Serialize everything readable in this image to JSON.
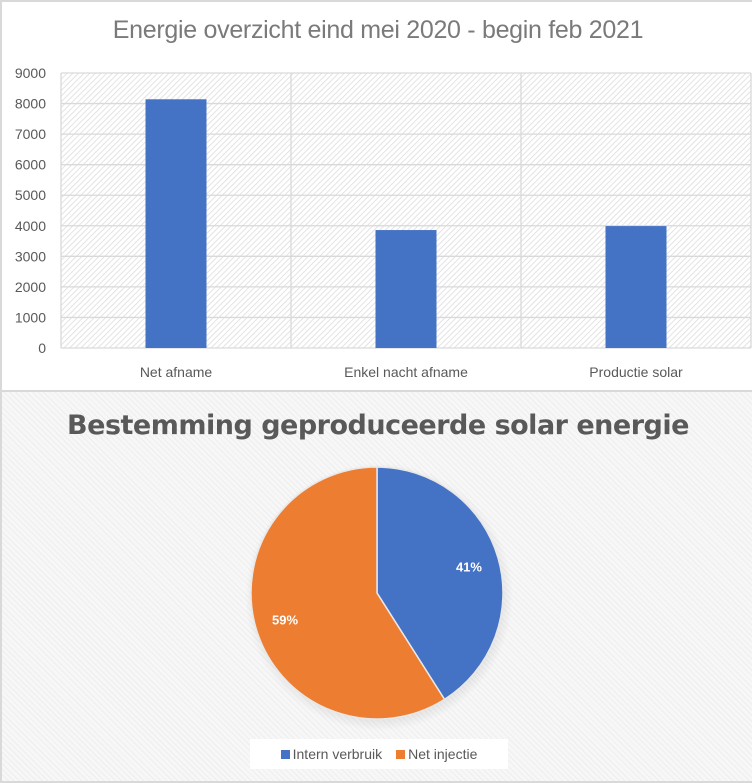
{
  "chart_data": [
    {
      "type": "bar",
      "title": "Energie overzicht eind mei 2020 - begin feb 2021",
      "categories": [
        "Net afname",
        "Enkel nacht afname",
        "Productie solar"
      ],
      "values": [
        8140,
        3860,
        3990
      ],
      "xlabel": "",
      "ylabel": "",
      "ylim": [
        0,
        9000
      ],
      "yticks": [
        "0",
        "1000",
        "2000",
        "3000",
        "4000",
        "5000",
        "6000",
        "7000",
        "8000",
        "9000"
      ],
      "grid": true,
      "bar_color": "#4472c4"
    },
    {
      "type": "pie",
      "title": "Bestemming geproduceerde solar energie",
      "labels": [
        "Intern verbruik",
        "Net injectie"
      ],
      "values": [
        41,
        59
      ],
      "data_labels": [
        "41%",
        "59%"
      ],
      "colors": [
        "#4472c4",
        "#ed7d31"
      ],
      "legend_position": "bottom"
    }
  ]
}
